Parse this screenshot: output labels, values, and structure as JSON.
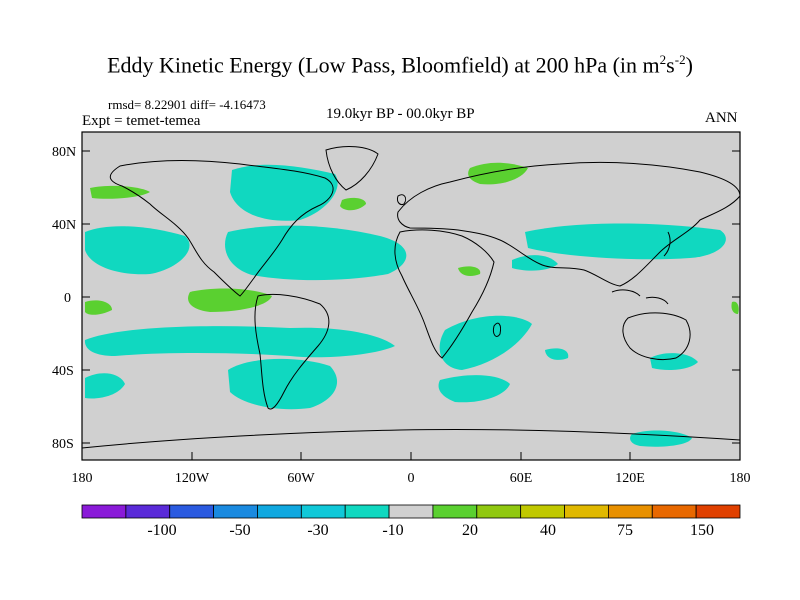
{
  "title": {
    "main": "Eddy Kinetic Energy (Low Pass, Bloomfield) at 200 hPa (in m",
    "sup1": "2",
    "mid": "s",
    "sup2": "-2",
    "end": ")"
  },
  "stats": "rmsd= 8.22901 diff= -4.16473",
  "experiment": "Expt = temet-temea",
  "period": "19.0kyr BP - 00.0kyr BP",
  "season": "ANN",
  "lat_ticks": [
    "80N",
    "40N",
    "0",
    "40S",
    "80S"
  ],
  "lon_ticks": [
    "180",
    "120W",
    "60W",
    "0",
    "60E",
    "120E",
    "180"
  ],
  "colorbar": {
    "labels": [
      "-100",
      "-50",
      "-30",
      "-10",
      "20",
      "40",
      "75",
      "150"
    ],
    "colors": [
      "#8a1ad8",
      "#5a2ad8",
      "#2a5ae0",
      "#1a8ae0",
      "#10a8e0",
      "#10c8d8",
      "#10d8c0",
      "#d0d0d0",
      "#5ad030",
      "#90c810",
      "#c0c800",
      "#e0b800",
      "#e89000",
      "#e86800",
      "#e04000"
    ]
  },
  "colors": {
    "land_ocean_neutral": "#d0d0d0",
    "cool": "#10d8c0",
    "cyan": "#10c8d8",
    "green": "#5ad030"
  }
}
